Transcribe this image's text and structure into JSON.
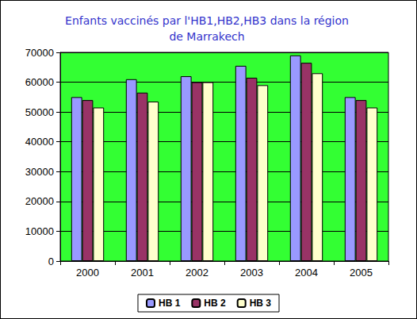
{
  "chart_data": {
    "type": "bar",
    "title": "Enfants vaccinés par l'HB1,HB2,HB3 dans la région\nde Marrakech",
    "categories": [
      "2000",
      "2001",
      "2002",
      "2003",
      "2004",
      "2005"
    ],
    "series": [
      {
        "name": "HB 1",
        "color": "#9999ff",
        "values": [
          55000,
          61000,
          62000,
          65500,
          69000,
          55000
        ]
      },
      {
        "name": "HB 2",
        "color": "#993366",
        "values": [
          54000,
          56500,
          60000,
          61500,
          66500,
          54000
        ]
      },
      {
        "name": "HB 3",
        "color": "#ffffcc",
        "values": [
          51500,
          53500,
          60000,
          59000,
          63000,
          51500
        ]
      }
    ],
    "ylim": [
      0,
      70000
    ],
    "yticks": [
      0,
      10000,
      20000,
      30000,
      40000,
      50000,
      60000,
      70000
    ],
    "grid": true,
    "legend": "bottom"
  }
}
